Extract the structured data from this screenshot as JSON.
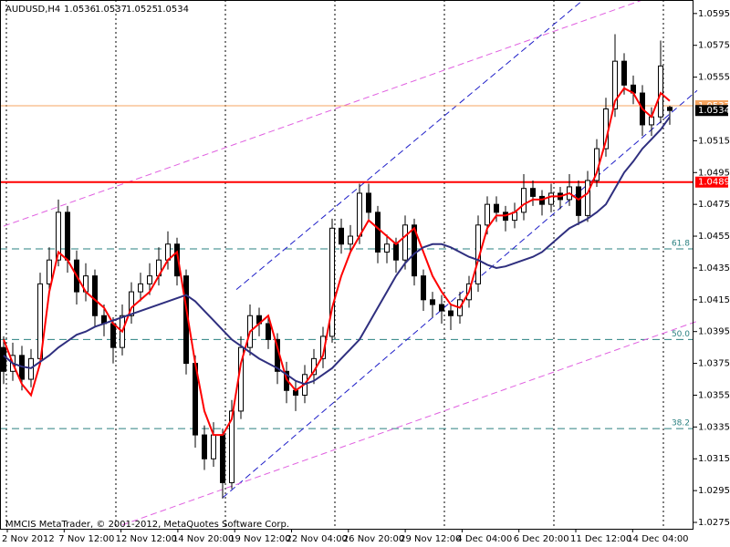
{
  "chart_data": {
    "type": "candlestick",
    "title": "AUDUSD,H4",
    "copyright": "MMCIS MetaTrader, © 2001-2012, MetaQuotes Software Corp.",
    "ylim": [
      1.0271,
      1.06035
    ],
    "yticks": [
      1.0595,
      1.0575,
      1.0555,
      1.0515,
      1.0495,
      1.0475,
      1.0455,
      1.0435,
      1.0415,
      1.0395,
      1.0375,
      1.0355,
      1.0335,
      1.0315,
      1.0295,
      1.0275
    ],
    "xlabels": [
      "2 Nov 2012",
      "7 Nov 12:00",
      "12 Nov 12:00",
      "14 Nov 20:00",
      "19 Nov 12:00",
      "22 Nov 04:00",
      "26 Nov 20:00",
      "29 Nov 12:00",
      "4 Dec 04:00",
      "6 Dec 20:00",
      "11 Dec 12:00",
      "14 Dec 04:00"
    ],
    "bull_color": "#ffffff",
    "bear_color": "#000000",
    "candles": [
      [
        1.0385,
        1.0392,
        1.0362,
        1.037
      ],
      [
        1.037,
        1.0388,
        1.0364,
        1.038
      ],
      [
        1.038,
        1.0386,
        1.0358,
        1.0365
      ],
      [
        1.0365,
        1.0384,
        1.036,
        1.0378
      ],
      [
        1.0378,
        1.0432,
        1.0374,
        1.0425
      ],
      [
        1.0425,
        1.0448,
        1.0418,
        1.044
      ],
      [
        1.044,
        1.0478,
        1.0436,
        1.047
      ],
      [
        1.047,
        1.0474,
        1.0432,
        1.044
      ],
      [
        1.044,
        1.0446,
        1.0412,
        1.042
      ],
      [
        1.042,
        1.0438,
        1.0414,
        1.043
      ],
      [
        1.043,
        1.0434,
        1.0398,
        1.0405
      ],
      [
        1.0405,
        1.0412,
        1.0392,
        1.04
      ],
      [
        1.04,
        1.0404,
        1.0375,
        1.0385
      ],
      [
        1.0385,
        1.0412,
        1.038,
        1.0405
      ],
      [
        1.0405,
        1.0426,
        1.04,
        1.042
      ],
      [
        1.042,
        1.0432,
        1.0414,
        1.0425
      ],
      [
        1.0425,
        1.0438,
        1.0418,
        1.043
      ],
      [
        1.043,
        1.0448,
        1.0424,
        1.044
      ],
      [
        1.044,
        1.0458,
        1.0434,
        1.045
      ],
      [
        1.045,
        1.0454,
        1.0424,
        1.043
      ],
      [
        1.043,
        1.0434,
        1.0368,
        1.0375
      ],
      [
        1.0375,
        1.038,
        1.0322,
        1.033
      ],
      [
        1.033,
        1.0336,
        1.0308,
        1.0315
      ],
      [
        1.0315,
        1.0338,
        1.031,
        1.033
      ],
      [
        1.033,
        1.0334,
        1.029,
        1.03
      ],
      [
        1.03,
        1.0352,
        1.0296,
        1.0345
      ],
      [
        1.0345,
        1.0392,
        1.034,
        1.0385
      ],
      [
        1.0385,
        1.0412,
        1.038,
        1.0405
      ],
      [
        1.0405,
        1.041,
        1.0392,
        1.04
      ],
      [
        1.04,
        1.0404,
        1.0384,
        1.039
      ],
      [
        1.039,
        1.0394,
        1.0362,
        1.037
      ],
      [
        1.037,
        1.0376,
        1.035,
        1.0358
      ],
      [
        1.0358,
        1.0364,
        1.0345,
        1.0355
      ],
      [
        1.0355,
        1.0374,
        1.035,
        1.0368
      ],
      [
        1.0368,
        1.0384,
        1.0362,
        1.0378
      ],
      [
        1.0378,
        1.0398,
        1.0372,
        1.0392
      ],
      [
        1.0392,
        1.0466,
        1.0388,
        1.046
      ],
      [
        1.046,
        1.0466,
        1.0444,
        1.045
      ],
      [
        1.045,
        1.0462,
        1.0444,
        1.0455
      ],
      [
        1.0455,
        1.0488,
        1.045,
        1.0482
      ],
      [
        1.0482,
        1.0488,
        1.0464,
        1.047
      ],
      [
        1.047,
        1.0474,
        1.0438,
        1.0445
      ],
      [
        1.0445,
        1.0456,
        1.0438,
        1.045
      ],
      [
        1.045,
        1.0454,
        1.0432,
        1.044
      ],
      [
        1.044,
        1.0468,
        1.0434,
        1.0462
      ],
      [
        1.0462,
        1.0466,
        1.0424,
        1.043
      ],
      [
        1.043,
        1.0434,
        1.0408,
        1.0415
      ],
      [
        1.0415,
        1.042,
        1.0404,
        1.0412
      ],
      [
        1.0412,
        1.0418,
        1.04,
        1.0408
      ],
      [
        1.0408,
        1.0412,
        1.0396,
        1.0405
      ],
      [
        1.0405,
        1.042,
        1.04,
        1.0415
      ],
      [
        1.0415,
        1.043,
        1.041,
        1.0425
      ],
      [
        1.0425,
        1.0468,
        1.042,
        1.0462
      ],
      [
        1.0462,
        1.048,
        1.0456,
        1.0475
      ],
      [
        1.0475,
        1.048,
        1.0464,
        1.047
      ],
      [
        1.047,
        1.0474,
        1.0458,
        1.0465
      ],
      [
        1.0465,
        1.0476,
        1.046,
        1.047
      ],
      [
        1.047,
        1.0494,
        1.0465,
        1.0485
      ],
      [
        1.0485,
        1.049,
        1.0474,
        1.048
      ],
      [
        1.048,
        1.0484,
        1.0468,
        1.0475
      ],
      [
        1.0475,
        1.0488,
        1.047,
        1.0482
      ],
      [
        1.0482,
        1.0486,
        1.0472,
        1.0478
      ],
      [
        1.0478,
        1.0494,
        1.0474,
        1.0486
      ],
      [
        1.0486,
        1.049,
        1.0462,
        1.0468
      ],
      [
        1.0468,
        1.0496,
        1.0464,
        1.049
      ],
      [
        1.049,
        1.0516,
        1.0486,
        1.051
      ],
      [
        1.051,
        1.0542,
        1.0505,
        1.0535
      ],
      [
        1.0535,
        1.0582,
        1.053,
        1.0565
      ],
      [
        1.0565,
        1.057,
        1.0544,
        1.055
      ],
      [
        1.055,
        1.0556,
        1.0538,
        1.0545
      ],
      [
        1.0545,
        1.055,
        1.0518,
        1.0525
      ],
      [
        1.0525,
        1.0536,
        1.0518,
        1.053
      ],
      [
        1.053,
        1.0578,
        1.0526,
        1.0562
      ],
      [
        1.0536,
        1.0537,
        1.0525,
        1.0534
      ]
    ],
    "lines": [
      {
        "color": "#ff0000",
        "values": [
          1.039,
          1.0375,
          1.0362,
          1.0355,
          1.0375,
          1.042,
          1.0445,
          1.044,
          1.043,
          1.042,
          1.0415,
          1.041,
          1.04,
          1.0395,
          1.041,
          1.0415,
          1.042,
          1.043,
          1.044,
          1.0445,
          1.041,
          1.0375,
          1.0345,
          1.033,
          1.033,
          1.034,
          1.0375,
          1.0395,
          1.04,
          1.0405,
          1.0385,
          1.0365,
          1.0358,
          1.0362,
          1.037,
          1.038,
          1.041,
          1.043,
          1.0445,
          1.0455,
          1.0465,
          1.046,
          1.0455,
          1.045,
          1.0455,
          1.046,
          1.0445,
          1.043,
          1.042,
          1.0412,
          1.041,
          1.042,
          1.044,
          1.046,
          1.0468,
          1.0468,
          1.047,
          1.0475,
          1.0478,
          1.0478,
          1.048,
          1.048,
          1.0482,
          1.0478,
          1.0482,
          1.0495,
          1.0515,
          1.054,
          1.0548,
          1.0545,
          1.0535,
          1.053,
          1.0545,
          1.054
        ]
      },
      {
        "color": "#2f2f7f",
        "values": [
          1.038,
          1.0375,
          1.0373,
          1.0372,
          1.0376,
          1.038,
          1.0385,
          1.0389,
          1.0393,
          1.0395,
          1.0398,
          1.04,
          1.0402,
          1.0404,
          1.0406,
          1.0408,
          1.041,
          1.0412,
          1.0414,
          1.0416,
          1.0418,
          1.0414,
          1.0408,
          1.0402,
          1.0396,
          1.039,
          1.0386,
          1.0382,
          1.0378,
          1.0375,
          1.0372,
          1.0368,
          1.0364,
          1.0362,
          1.0364,
          1.0368,
          1.0372,
          1.0378,
          1.0384,
          1.039,
          1.04,
          1.041,
          1.042,
          1.043,
          1.0438,
          1.0444,
          1.0448,
          1.045,
          1.045,
          1.0448,
          1.0445,
          1.0442,
          1.044,
          1.0437,
          1.0435,
          1.0436,
          1.0438,
          1.044,
          1.0442,
          1.0445,
          1.045,
          1.0455,
          1.046,
          1.0463,
          1.0466,
          1.047,
          1.0475,
          1.0485,
          1.0495,
          1.0502,
          1.051,
          1.0516,
          1.0522,
          1.053
        ]
      }
    ],
    "trendlines": [
      {
        "color": "#1e1ec8",
        "x": [
          25.5,
          63.5
        ],
        "y": [
          1.04214,
          1.06035
        ]
      },
      {
        "color": "#1e1ec8",
        "x": [
          24,
          76
        ],
        "y": [
          1.02905,
          1.05466
        ]
      },
      {
        "color": "#e060e0",
        "x": [
          0,
          70
        ],
        "y": [
          1.04613,
          1.06035
        ]
      },
      {
        "color": "#e060e0",
        "x": [
          13,
          76
        ],
        "y": [
          1.02734,
          1.04015
        ]
      }
    ],
    "fib_color": "#2a8080",
    "fib_levels": [
      {
        "label": "61.8",
        "price": 1.0447
      },
      {
        "label": "50.0",
        "price": 1.039
      },
      {
        "label": "38.2",
        "price": 1.0334
      }
    ],
    "price_lines": [
      {
        "value": 1.0537,
        "color": "#f4a460"
      },
      {
        "value": 1.0489,
        "color": "#ff0000"
      }
    ]
  }
}
